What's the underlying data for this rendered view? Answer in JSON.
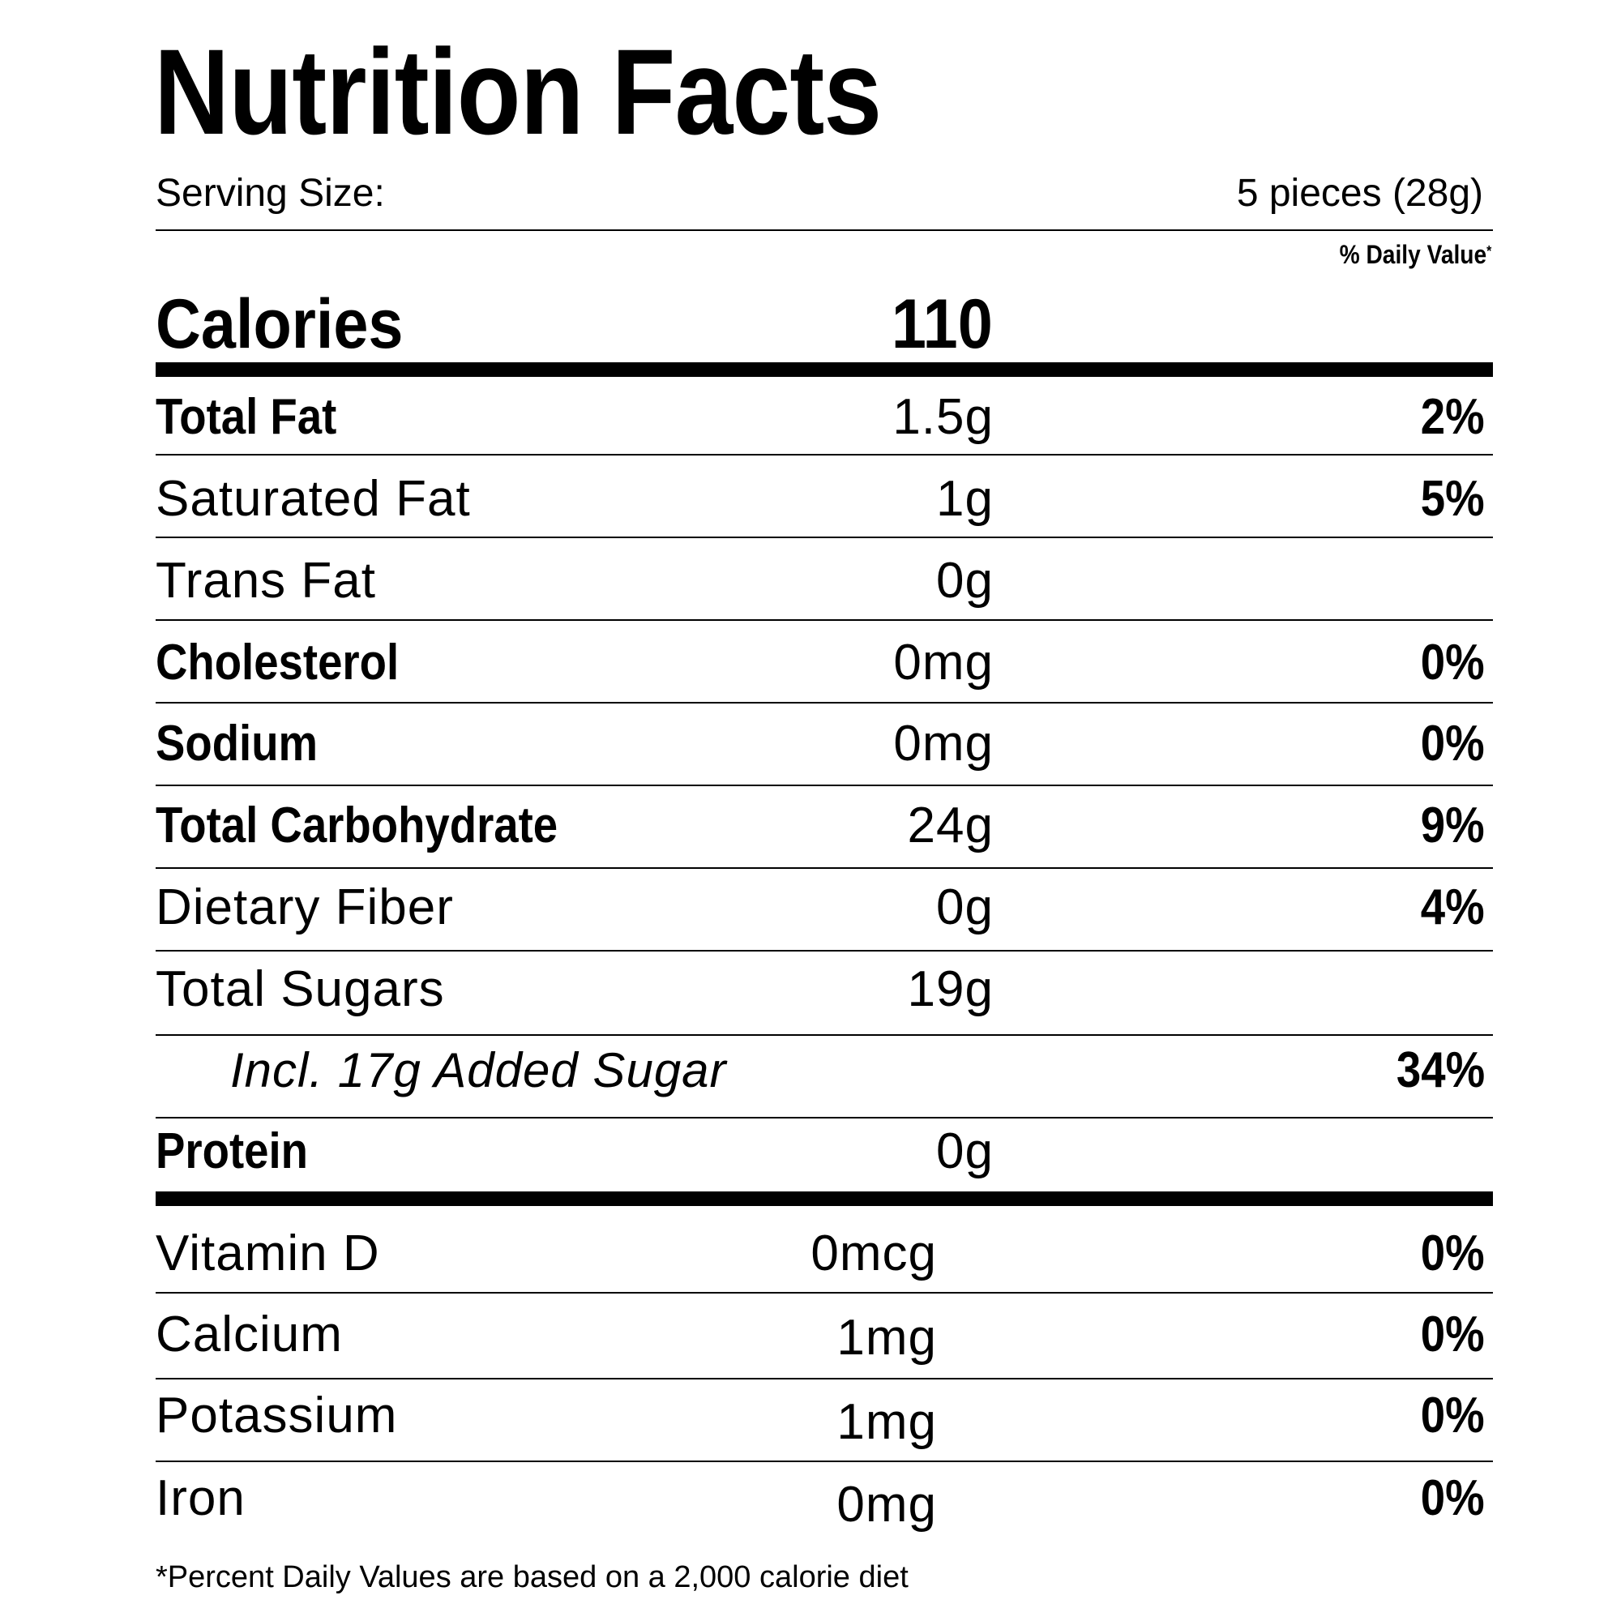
{
  "title": "Nutrition Facts",
  "serving": {
    "label": "Serving Size:",
    "value": "5 pieces (28g)"
  },
  "daily_value_header": "% Daily Value",
  "daily_value_marker": "*",
  "calories": {
    "label": "Calories",
    "value": "110"
  },
  "nutrients": [
    {
      "name": "Total Fat",
      "amount": "1.5g",
      "dv": "2%"
    },
    {
      "name": "Saturated Fat",
      "amount": "1g",
      "dv": "5%"
    },
    {
      "name": "Trans Fat",
      "amount": "0g",
      "dv": ""
    },
    {
      "name": "Cholesterol",
      "amount": "0mg",
      "dv": "0%"
    },
    {
      "name": "Sodium",
      "amount": "0mg",
      "dv": "0%"
    },
    {
      "name": "Total Carbohydrate",
      "amount": "24g",
      "dv": "9%"
    },
    {
      "name": "Dietary Fiber",
      "amount": "0g",
      "dv": "4%"
    },
    {
      "name": "Total Sugars",
      "amount": "19g",
      "dv": ""
    },
    {
      "name": "Incl. 17g Added Sugar",
      "amount": "",
      "dv": "34%"
    },
    {
      "name": "Protein",
      "amount": "0g",
      "dv": ""
    }
  ],
  "vitamins": [
    {
      "name": "Vitamin D",
      "amount": "0mcg",
      "dv": "0%"
    },
    {
      "name": "Calcium",
      "amount": "1mg",
      "dv": "0%"
    },
    {
      "name": "Potassium",
      "amount": "1mg",
      "dv": "0%"
    },
    {
      "name": "Iron",
      "amount": "0mg",
      "dv": "0%"
    }
  ],
  "footnote": "*Percent Daily Values are based on a 2,000 calorie diet"
}
